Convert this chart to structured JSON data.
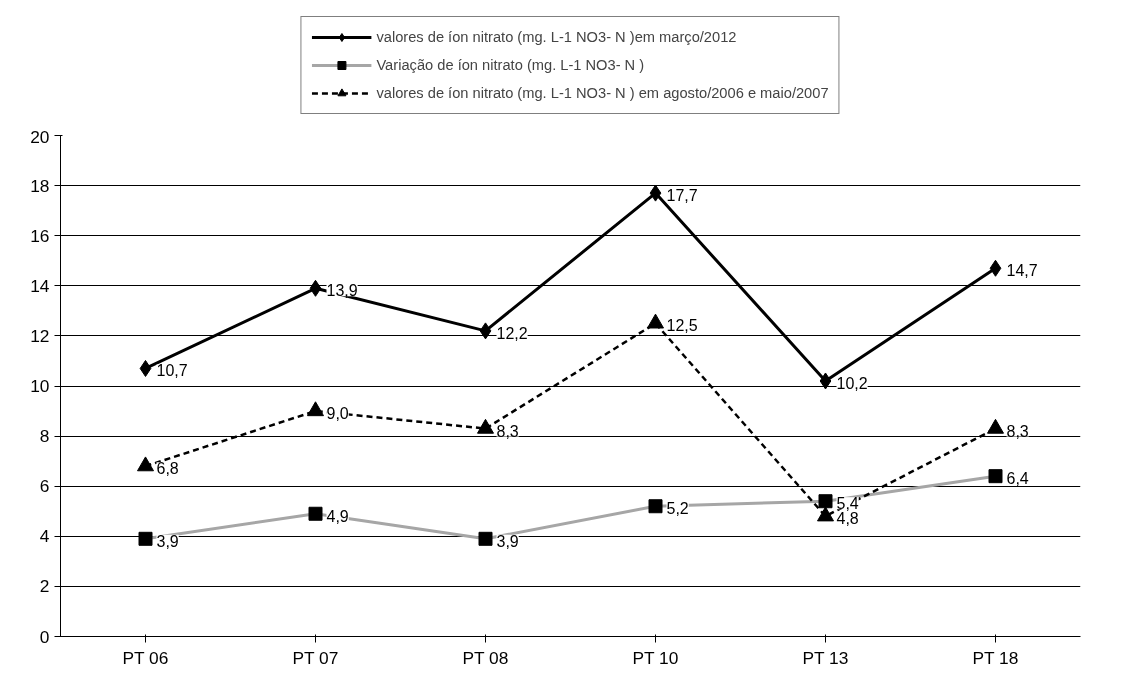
{
  "chart_data": {
    "type": "line",
    "categories": [
      "PT 06",
      "PT 07",
      "PT 08",
      "PT 10",
      "PT 13",
      "PT 18"
    ],
    "series": [
      {
        "name": "valores de íon nitrato (mg. L-1 NO3- N )em março/2012",
        "color": "#000000",
        "marker": "diamond",
        "line_style": "solid",
        "values": [
          10.7,
          13.9,
          12.2,
          17.7,
          10.2,
          14.7
        ],
        "value_labels": [
          "10,7",
          "13,9",
          "12,2",
          "17,7",
          "10,2",
          "14,7"
        ]
      },
      {
        "name": "Variação de íon nitrato (mg. L-1 NO3- N )",
        "color": "#a6a6a6",
        "marker": "square",
        "line_style": "solid",
        "values": [
          3.9,
          4.9,
          3.9,
          5.2,
          5.4,
          6.4
        ],
        "value_labels": [
          "3,9",
          "4,9",
          "3,9",
          "5,2",
          "5,4",
          "6,4"
        ]
      },
      {
        "name": "valores de íon nitrato (mg. L-1 NO3- N ) em agosto/2006 e maio/2007",
        "color": "#000000",
        "marker": "triangle",
        "line_style": "dashed",
        "values": [
          6.8,
          9.0,
          8.3,
          12.5,
          4.8,
          8.3
        ],
        "value_labels": [
          "6,8",
          "9,0",
          "8,3",
          "12,5",
          "4,8",
          "8,3"
        ]
      }
    ],
    "ylim": [
      0,
      20
    ],
    "yticks": [
      0,
      2,
      4,
      6,
      8,
      10,
      12,
      14,
      16,
      18,
      20
    ],
    "grid": "y",
    "legend": "top"
  }
}
